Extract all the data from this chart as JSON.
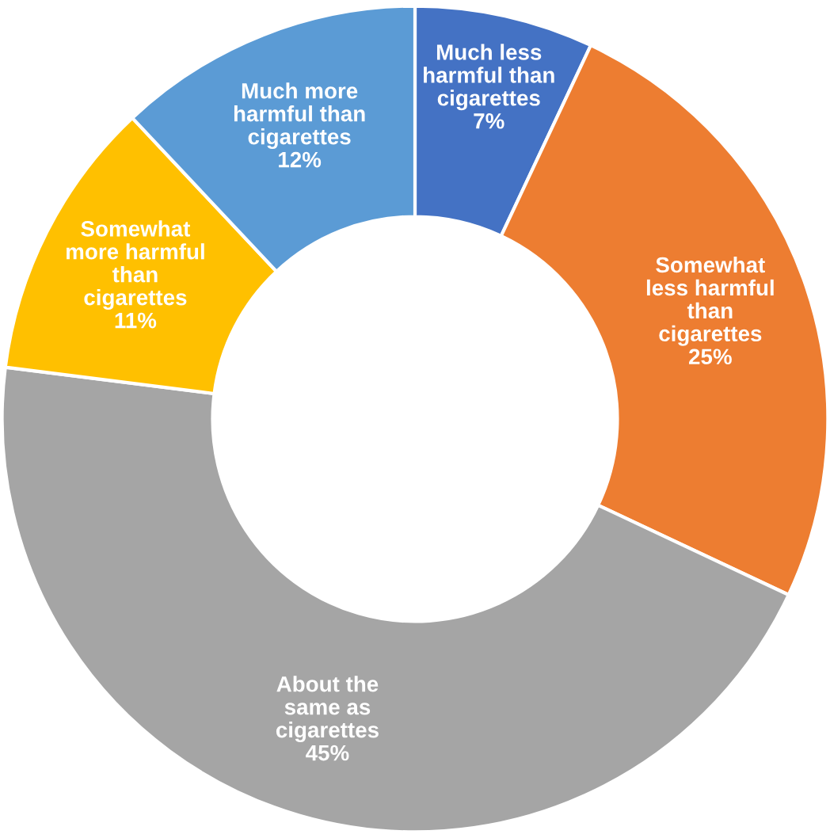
{
  "chart_data": {
    "type": "donut",
    "categories": [
      "Much less\nharmful than\ncigarettes",
      "Somewhat\nless harmful\nthan\ncigarettes",
      "About the\nsame as\ncigarettes",
      "Somewhat\nmore harmful\nthan\ncigarettes",
      "Much more\nharmful than\ncigarettes"
    ],
    "values": [
      7,
      25,
      45,
      11,
      12
    ],
    "value_labels": [
      "7%",
      "25%",
      "45%",
      "11%",
      "12%"
    ],
    "colors": [
      "#4472c4",
      "#ed7d31",
      "#a5a5a5",
      "#ffc000",
      "#5b9bd5"
    ]
  }
}
